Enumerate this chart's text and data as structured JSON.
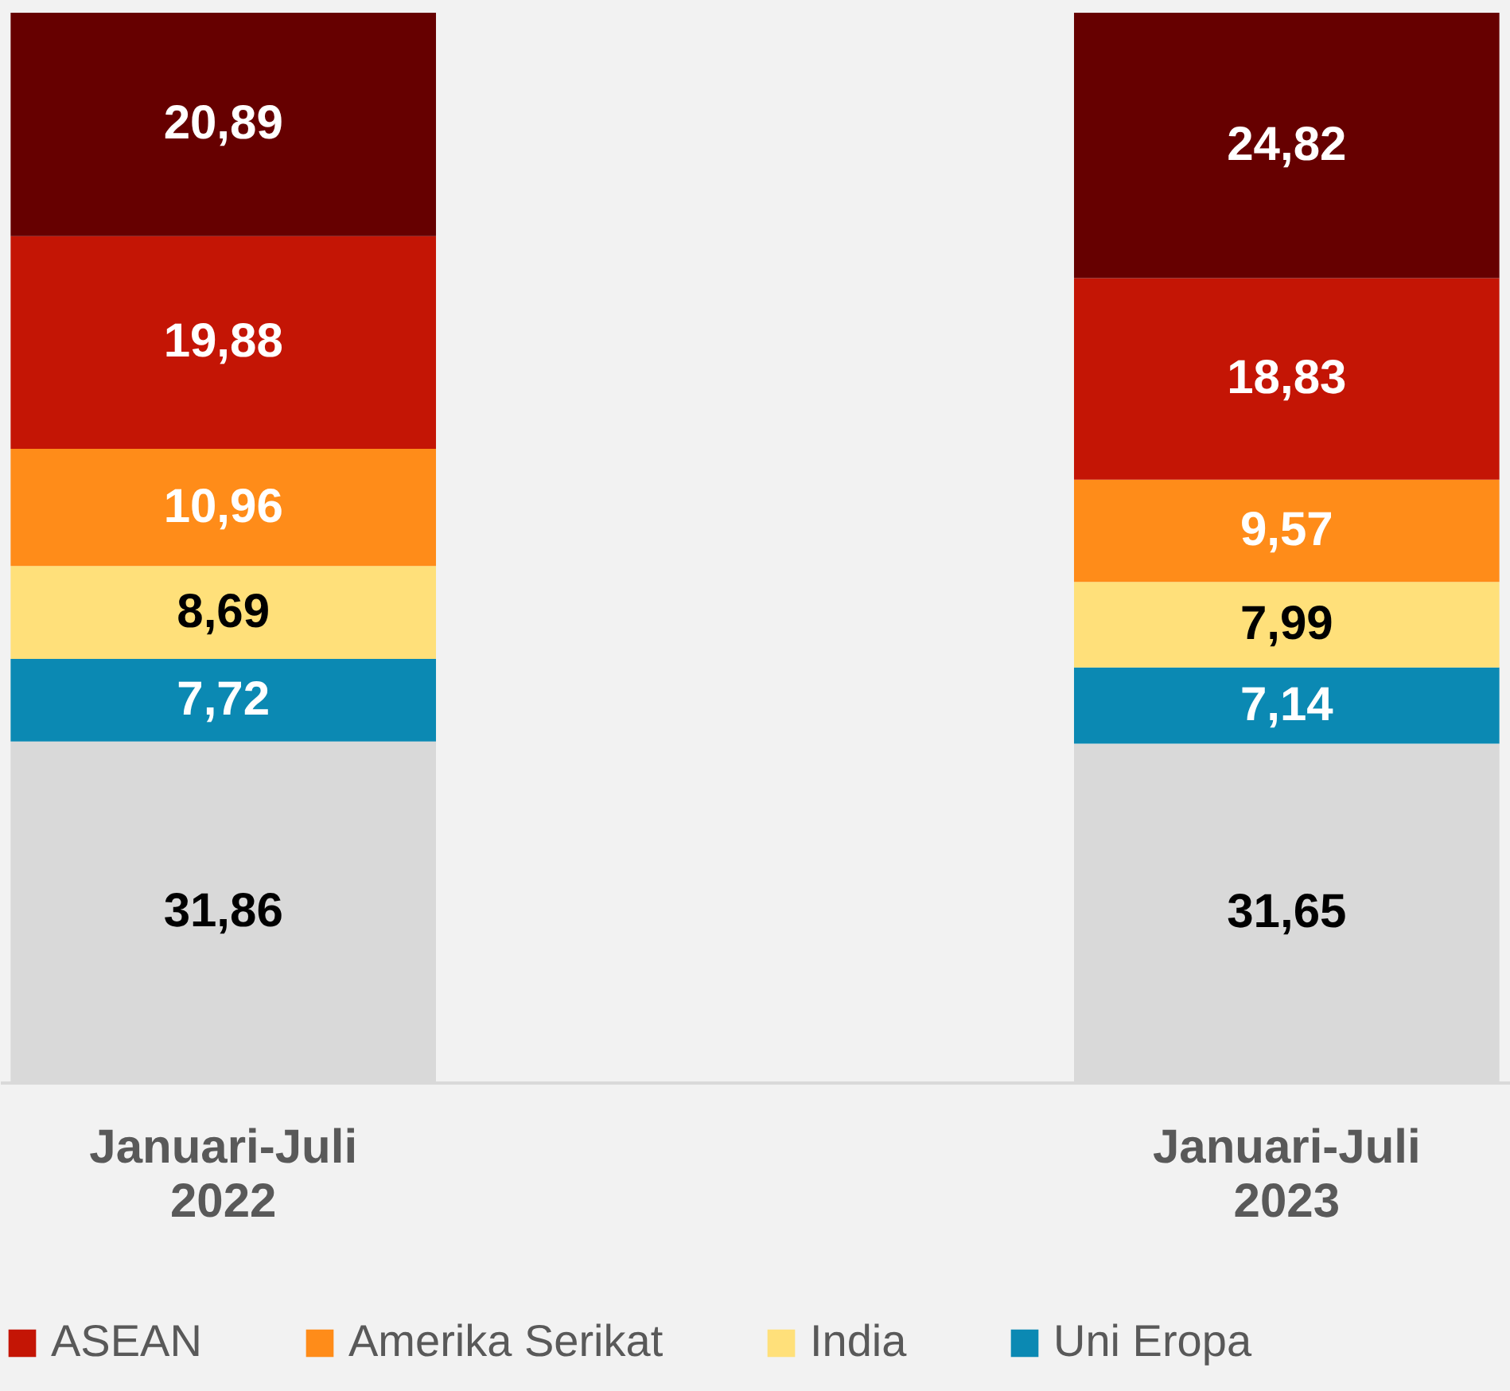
{
  "chart_data": {
    "type": "bar",
    "stacked": true,
    "legend": "bottom",
    "categories": [
      "Januari-Juli 2022",
      "Januari-Juli 2023"
    ],
    "series": [
      {
        "color": "#d9d9d9",
        "values": [
          31.86,
          31.65
        ],
        "value_labels": [
          "31,86",
          "31,65"
        ]
      },
      {
        "name": "Uni Eropa",
        "color": "#0b89b3",
        "values": [
          7.72,
          7.14
        ],
        "value_labels": [
          "7,72",
          "7,14"
        ]
      },
      {
        "name": "India",
        "color": "#ffe07a",
        "values": [
          8.69,
          7.99
        ],
        "value_labels": [
          "8,69",
          "7,99"
        ]
      },
      {
        "name": "Amerika Serikat",
        "color": "#ff8c19",
        "values": [
          10.96,
          9.57
        ],
        "value_labels": [
          "10,96",
          "9,57"
        ]
      },
      {
        "name": "ASEAN",
        "color": "#c41505",
        "values": [
          19.88,
          18.83
        ],
        "value_labels": [
          "19,88",
          "18,83"
        ]
      },
      {
        "color": "#660000",
        "values": [
          20.89,
          24.82
        ],
        "value_labels": [
          "20,89",
          "24,82"
        ]
      }
    ]
  }
}
